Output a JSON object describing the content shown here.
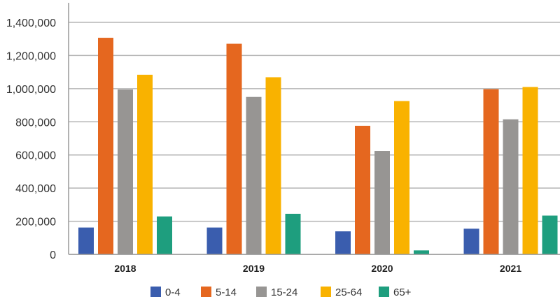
{
  "chart_data": {
    "type": "bar",
    "title": "",
    "xlabel": "",
    "ylabel": "",
    "ylim": [
      0,
      1400000
    ],
    "yticks": [
      0,
      200000,
      400000,
      600000,
      800000,
      1000000,
      1200000,
      1400000
    ],
    "ytick_labels": [
      "0",
      "200,000",
      "400,000",
      "600,000",
      "800,000",
      "1,000,000",
      "1,200,000",
      "1,400,000"
    ],
    "grid": true,
    "legend_position": "bottom",
    "categories": [
      "2018",
      "2019",
      "2020",
      "2021"
    ],
    "series": [
      {
        "name": "0-4",
        "color": "#3a5dae",
        "values": [
          162000,
          162000,
          139000,
          155000
        ]
      },
      {
        "name": "5-14",
        "color": "#e5671f",
        "values": [
          1307000,
          1271000,
          776000,
          997000
        ]
      },
      {
        "name": "15-24",
        "color": "#979593",
        "values": [
          995000,
          950000,
          624000,
          815000
        ]
      },
      {
        "name": "25-64",
        "color": "#f9b200",
        "values": [
          1084000,
          1069000,
          925000,
          1010000
        ]
      },
      {
        "name": "65+",
        "color": "#1e9e7e",
        "values": [
          229000,
          245000,
          24000,
          234000
        ]
      }
    ]
  }
}
